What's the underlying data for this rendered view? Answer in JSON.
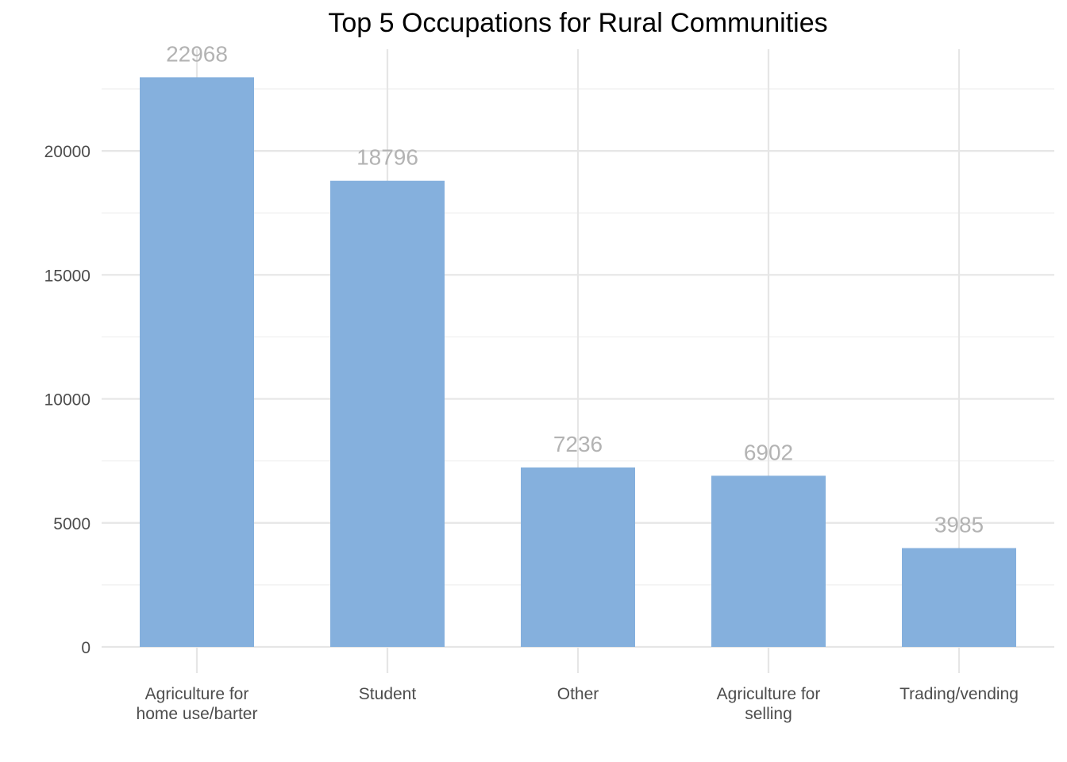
{
  "chart_data": {
    "type": "bar",
    "title": "Top 5 Occupations for Rural Communities",
    "xlabel": "",
    "ylabel": "",
    "categories": [
      [
        "Agriculture for",
        "home use/barter"
      ],
      [
        "Student"
      ],
      [
        "Other"
      ],
      [
        "Agriculture for",
        "selling"
      ],
      [
        "Trading/vending"
      ]
    ],
    "values": [
      22968,
      18796,
      7236,
      6902,
      3985
    ],
    "value_labels": [
      "22968",
      "18796",
      "7236",
      "6902",
      "3985"
    ],
    "ylim": [
      0,
      24100
    ],
    "y_ticks": [
      0,
      5000,
      10000,
      15000,
      20000
    ],
    "y_tick_labels": [
      "0",
      "5000",
      "10000",
      "15000",
      "20000"
    ],
    "y_minor_ticks": [
      2500,
      7500,
      12500,
      17500,
      22500
    ],
    "grid": true,
    "legend": "none",
    "colors": {
      "bar": "#85B0DD",
      "data_label": "#B3B3B3"
    }
  }
}
